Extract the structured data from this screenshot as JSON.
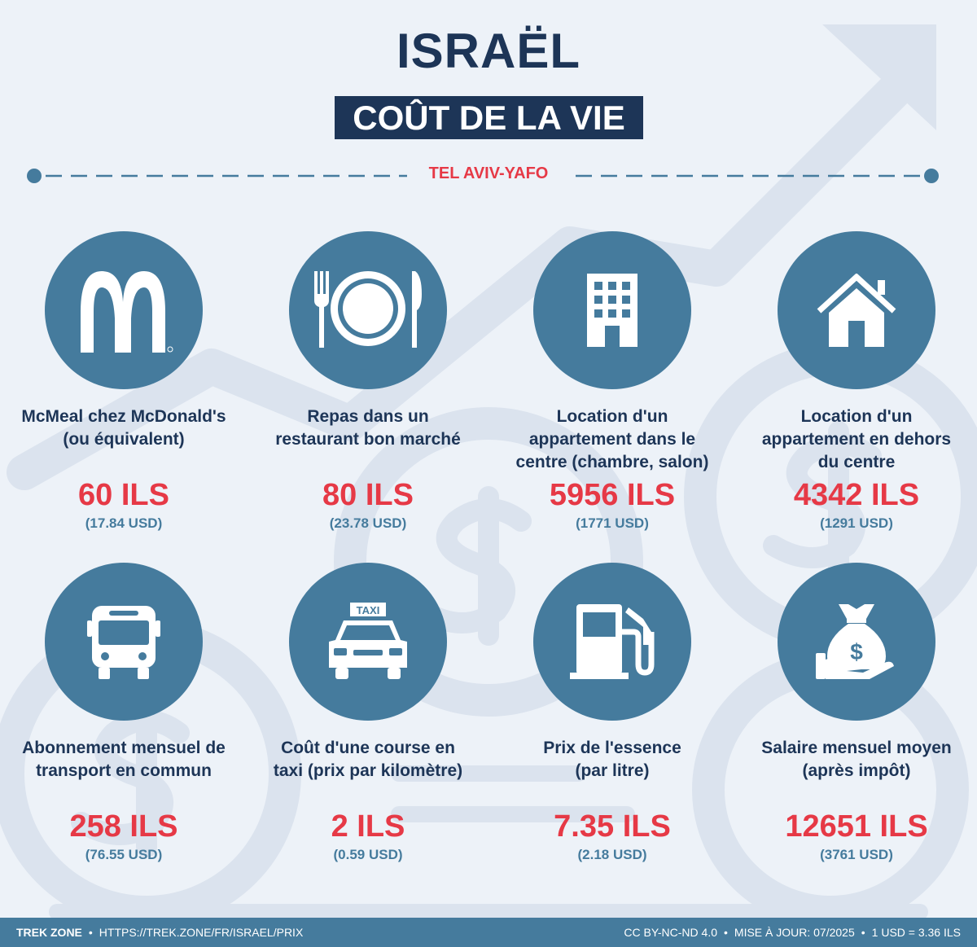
{
  "header": {
    "title": "ISRAËL",
    "subtitle": "COÛT DE LA VIE",
    "city": "TEL AVIV-YAFO"
  },
  "colors": {
    "navy": "#1d3557",
    "steel_blue": "#457b9d",
    "accent_red": "#e63946",
    "background": "#edf2f8"
  },
  "items": [
    {
      "icon": "mcdonalds-logo-icon",
      "label_lines": [
        "McMeal chez McDonald's",
        "(ou équivalent)"
      ],
      "price": "60 ILS",
      "usd": "(17.84 USD)"
    },
    {
      "icon": "fork-plate-knife-icon",
      "label_lines": [
        "Repas dans un",
        "restaurant bon marché"
      ],
      "price": "80 ILS",
      "usd": "(23.78 USD)"
    },
    {
      "icon": "office-building-icon",
      "label_lines": [
        "Location d'un",
        "appartement dans le",
        "centre (chambre, salon)"
      ],
      "price": "5956 ILS",
      "usd": "(1771 USD)"
    },
    {
      "icon": "house-icon",
      "label_lines": [
        "Location d'un",
        "appartement en dehors",
        "du centre"
      ],
      "price": "4342 ILS",
      "usd": "(1291 USD)"
    },
    {
      "icon": "bus-icon",
      "label_lines": [
        "Abonnement mensuel de",
        "transport en commun"
      ],
      "price": "258 ILS",
      "usd": "(76.55 USD)"
    },
    {
      "icon": "taxi-icon",
      "taxi_sign": "TAXI",
      "label_lines": [
        "Coût d'une course en",
        "taxi (prix par kilomètre)"
      ],
      "price": "2 ILS",
      "usd": "(0.59 USD)"
    },
    {
      "icon": "fuel-pump-icon",
      "label_lines": [
        "Prix de l'essence",
        "(par litre)"
      ],
      "price": "7.35 ILS",
      "usd": "(2.18 USD)"
    },
    {
      "icon": "money-bag-hand-icon",
      "label_lines": [
        "Salaire mensuel moyen",
        "(après impôt)"
      ],
      "price": "12651 ILS",
      "usd": "(3761 USD)"
    }
  ],
  "footer": {
    "brand": "TREK ZONE",
    "url": "HTTPS://TREK.ZONE/FR/ISRAEL/PRIX",
    "license": "CC BY-NC-ND 4.0",
    "updated": "MISE À JOUR: 07/2025",
    "rate": "1 USD = 3.36 ILS"
  }
}
